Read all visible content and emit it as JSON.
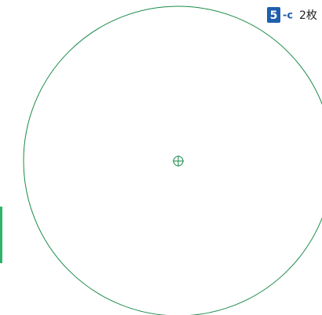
{
  "label": {
    "number": "5",
    "suffix": "-c",
    "count": "2枚"
  }
}
